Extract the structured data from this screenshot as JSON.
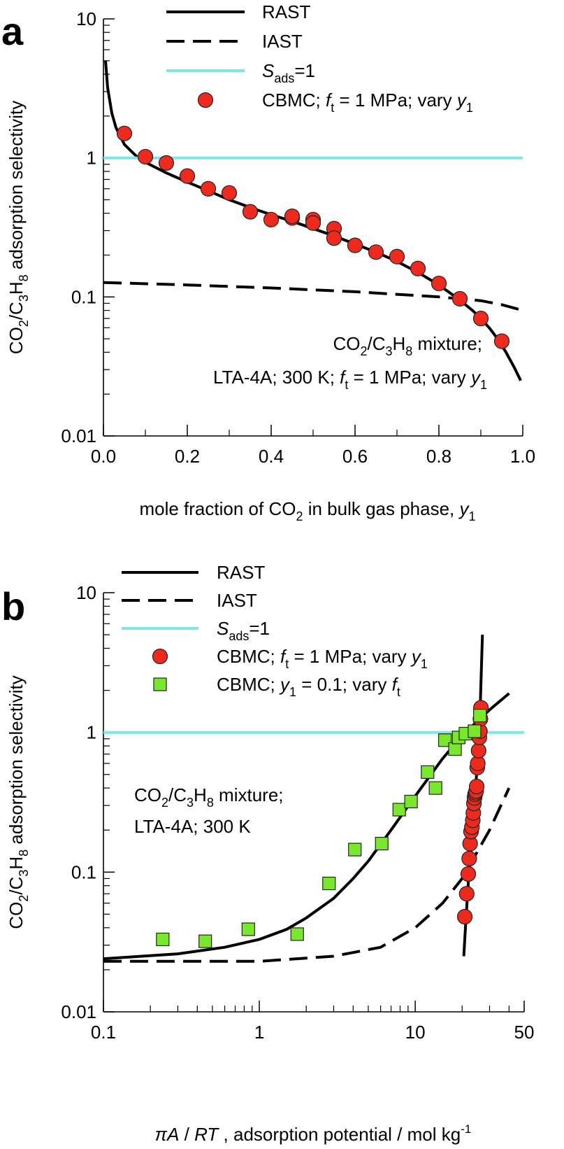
{
  "chart_data": [
    {
      "panel_label": "a",
      "type": "line",
      "xlabel_parts": [
        "mole fraction of  CO",
        "2",
        " in bulk gas phase, ",
        "y",
        "1"
      ],
      "ylabel_parts": [
        "CO",
        "2",
        "/C",
        "3",
        "H",
        "8",
        "  adsorption selectivity"
      ],
      "xscale": "linear",
      "yscale": "log",
      "xlim": [
        0,
        1
      ],
      "ylim": [
        0.01,
        10
      ],
      "xticks": [
        "0.0",
        "0.2",
        "0.4",
        "0.6",
        "0.8",
        "1.0"
      ],
      "xtick_values": [
        0,
        0.2,
        0.4,
        0.6,
        0.8,
        1.0
      ],
      "yticks": [
        "0.01",
        "0.1",
        "1",
        "10"
      ],
      "ytick_values": [
        0.01,
        0.1,
        1,
        10
      ],
      "legend": {
        "position": "top-center",
        "entries": [
          {
            "style": "solid",
            "parts": [
              "RAST"
            ]
          },
          {
            "style": "dashed",
            "parts": [
              "IAST"
            ]
          },
          {
            "style": "cyan",
            "parts": [
              "S",
              "ads",
              "=1"
            ]
          },
          {
            "style": "circle",
            "parts": [
              "CBMC; ",
              "f",
              "t",
              " = 1 MPa; vary ",
              "y",
              "1"
            ]
          }
        ]
      },
      "annotation": {
        "position": "bottom-right",
        "line1": [
          "CO",
          "2",
          "/C",
          "3",
          "H",
          "8",
          " mixture;"
        ],
        "line2": [
          "LTA-4A; 300 K; ",
          "f",
          "t",
          " = 1 MPa; vary ",
          "y",
          "1"
        ]
      },
      "series": [
        {
          "name": "RAST",
          "style": "solid",
          "x": [
            0.005,
            0.01,
            0.02,
            0.03,
            0.05,
            0.08,
            0.1,
            0.15,
            0.2,
            0.25,
            0.3,
            0.35,
            0.4,
            0.45,
            0.5,
            0.55,
            0.6,
            0.65,
            0.7,
            0.75,
            0.8,
            0.85,
            0.88,
            0.9,
            0.92,
            0.94,
            0.96,
            0.98,
            0.995
          ],
          "y": [
            5.0,
            3.2,
            2.1,
            1.65,
            1.25,
            1.02,
            0.93,
            0.78,
            0.67,
            0.58,
            0.5,
            0.44,
            0.39,
            0.35,
            0.31,
            0.275,
            0.24,
            0.21,
            0.18,
            0.15,
            0.122,
            0.095,
            0.08,
            0.07,
            0.06,
            0.05,
            0.04,
            0.031,
            0.025
          ]
        },
        {
          "name": "IAST",
          "style": "dashed",
          "x": [
            0.0,
            0.2,
            0.4,
            0.6,
            0.8,
            0.9,
            0.95,
            1.0
          ],
          "y": [
            0.127,
            0.122,
            0.116,
            0.109,
            0.1,
            0.094,
            0.088,
            0.08
          ]
        },
        {
          "name": "S_ads=1",
          "style": "cyan",
          "x": [
            0,
            1
          ],
          "y": [
            1,
            1
          ]
        },
        {
          "name": "CBMC; ft = 1 MPa; vary y1",
          "style": "circle",
          "x": [
            0.05,
            0.1,
            0.15,
            0.2,
            0.25,
            0.3,
            0.35,
            0.4,
            0.45,
            0.45,
            0.5,
            0.5,
            0.55,
            0.55,
            0.6,
            0.65,
            0.7,
            0.75,
            0.8,
            0.85,
            0.9,
            0.95
          ],
          "y": [
            1.5,
            1.02,
            0.92,
            0.74,
            0.6,
            0.56,
            0.41,
            0.36,
            0.37,
            0.38,
            0.36,
            0.34,
            0.31,
            0.265,
            0.235,
            0.21,
            0.195,
            0.16,
            0.125,
            0.097,
            0.07,
            0.048
          ]
        }
      ]
    },
    {
      "panel_label": "b",
      "type": "line",
      "xlabel_parts": [
        "πA",
        " / ",
        "RT",
        " , adsorption potential / mol kg",
        "-1"
      ],
      "ylabel_parts": [
        "CO",
        "2",
        "/C",
        "3",
        "H",
        "8",
        "  adsorption selectivity"
      ],
      "xscale": "log",
      "yscale": "log",
      "xlim": [
        0.1,
        50
      ],
      "ylim": [
        0.01,
        10
      ],
      "xticks": [
        "0.1",
        "1",
        "10",
        "50"
      ],
      "xtick_values": [
        0.1,
        1,
        10,
        50
      ],
      "yticks": [
        "0.01",
        "0.1",
        "1",
        "10"
      ],
      "ytick_values": [
        0.01,
        0.1,
        1,
        10
      ],
      "legend": {
        "position": "top-center",
        "entries": [
          {
            "style": "solid",
            "parts": [
              "RAST"
            ]
          },
          {
            "style": "dashed",
            "parts": [
              "IAST"
            ]
          },
          {
            "style": "cyan",
            "parts": [
              "S",
              "ads",
              "=1"
            ]
          },
          {
            "style": "circle",
            "parts": [
              "CBMC; ",
              "f",
              "t",
              " = 1 MPa; vary ",
              "y",
              "1"
            ]
          },
          {
            "style": "square",
            "parts": [
              "CBMC; ",
              "y",
              "1",
              " = 0.1; vary ",
              "f",
              "t"
            ]
          }
        ]
      },
      "annotation": {
        "position": "middle-left",
        "line1": [
          "CO",
          "2",
          "/C",
          "3",
          "H",
          "8",
          " mixture;"
        ],
        "line2": [
          "LTA-4A; 300 K"
        ]
      },
      "series": [
        {
          "name": "RAST (vary ft)",
          "style": "solid",
          "x": [
            0.1,
            0.3,
            0.6,
            1.0,
            1.5,
            2.0,
            3.0,
            4.0,
            5.0,
            7.0,
            10,
            15,
            20,
            25,
            30,
            40
          ],
          "y": [
            0.024,
            0.026,
            0.029,
            0.033,
            0.039,
            0.047,
            0.065,
            0.09,
            0.12,
            0.2,
            0.35,
            0.65,
            0.95,
            1.2,
            1.45,
            1.9
          ]
        },
        {
          "name": "RAST (vary y1)",
          "style": "solid",
          "x": [
            20.5,
            21.0,
            21.5,
            22.0,
            23.0,
            24.0,
            25.0,
            26.0,
            27.0
          ],
          "y": [
            0.025,
            0.04,
            0.06,
            0.09,
            0.16,
            0.3,
            0.6,
            1.3,
            5.0
          ]
        },
        {
          "name": "IAST",
          "style": "dashed",
          "x": [
            0.1,
            1.0,
            3.0,
            6.0,
            10,
            15,
            20,
            25,
            30,
            35,
            40
          ],
          "y": [
            0.023,
            0.023,
            0.025,
            0.029,
            0.04,
            0.06,
            0.09,
            0.14,
            0.2,
            0.29,
            0.4
          ]
        },
        {
          "name": "S_ads=1",
          "style": "cyan",
          "x": [
            0.1,
            50
          ],
          "y": [
            1,
            1
          ]
        },
        {
          "name": "CBMC; ft = 1 MPa; vary y1",
          "style": "circle",
          "x": [
            20.8,
            21.4,
            21.9,
            22.2,
            22.5,
            22.8,
            23.1,
            23.4,
            23.6,
            23.8,
            24.0,
            24.2,
            24.4,
            24.6,
            24.8,
            25.0,
            25.2,
            25.5,
            25.8,
            26.0,
            26.2,
            26.4
          ],
          "y": [
            0.048,
            0.07,
            0.097,
            0.125,
            0.16,
            0.195,
            0.21,
            0.235,
            0.265,
            0.31,
            0.34,
            0.36,
            0.37,
            0.38,
            0.41,
            0.56,
            0.6,
            0.74,
            0.92,
            1.02,
            1.25,
            1.5
          ]
        },
        {
          "name": "CBMC; y1 = 0.1; vary ft",
          "style": "square",
          "x": [
            0.24,
            0.45,
            0.85,
            1.75,
            2.8,
            4.1,
            6.1,
            7.9,
            9.4,
            12.0,
            13.5,
            15.5,
            18.0,
            19.0,
            21.0,
            24.0,
            26.0
          ],
          "y": [
            0.033,
            0.032,
            0.039,
            0.036,
            0.083,
            0.145,
            0.16,
            0.28,
            0.32,
            0.52,
            0.4,
            0.88,
            0.76,
            0.92,
            0.98,
            1.02,
            1.32
          ]
        }
      ]
    }
  ]
}
